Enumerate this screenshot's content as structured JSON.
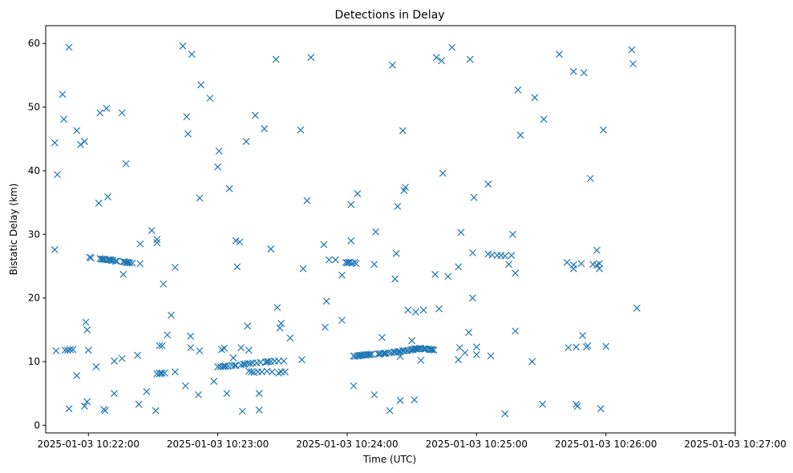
{
  "chart_data": {
    "type": "scatter",
    "title": "Detections in Delay",
    "xlabel": "Time (UTC)",
    "ylabel": "Bistatic Delay (km)",
    "marker": "x",
    "color": "#1f77b4",
    "x_unit": "minutes after 2025-01-03 10:22:00",
    "xlim": [
      -0.33,
      5.0
    ],
    "ylim": [
      -1.2,
      62.8
    ],
    "x_ticks": [
      {
        "value": 0,
        "label": "2025-01-03 10:22:00"
      },
      {
        "value": 1,
        "label": "2025-01-03 10:23:00"
      },
      {
        "value": 2,
        "label": "2025-01-03 10:24:00"
      },
      {
        "value": 3,
        "label": "2025-01-03 10:25:00"
      },
      {
        "value": 4,
        "label": "2025-01-03 10:26:00"
      },
      {
        "value": 5,
        "label": "2025-01-03 10:27:00"
      }
    ],
    "y_ticks": [
      {
        "value": 0,
        "label": "0"
      },
      {
        "value": 10,
        "label": "10"
      },
      {
        "value": 20,
        "label": "20"
      },
      {
        "value": 30,
        "label": "30"
      },
      {
        "value": 40,
        "label": "40"
      },
      {
        "value": 50,
        "label": "50"
      },
      {
        "value": 60,
        "label": "60"
      }
    ],
    "series": [
      {
        "name": "detections",
        "points": [
          [
            -0.26,
            44.4
          ],
          [
            -0.26,
            27.6
          ],
          [
            -0.25,
            11.7
          ],
          [
            -0.24,
            39.4
          ],
          [
            -0.2,
            52.0
          ],
          [
            -0.19,
            48.1
          ],
          [
            -0.18,
            11.8
          ],
          [
            -0.16,
            11.8
          ],
          [
            -0.15,
            2.6
          ],
          [
            -0.15,
            59.4
          ],
          [
            -0.14,
            11.9
          ],
          [
            -0.12,
            11.9
          ],
          [
            -0.09,
            46.3
          ],
          [
            -0.09,
            7.8
          ],
          [
            -0.06,
            44.1
          ],
          [
            -0.03,
            44.6
          ],
          [
            -0.03,
            3.0
          ],
          [
            -0.02,
            16.2
          ],
          [
            -0.01,
            15.0
          ],
          [
            -0.01,
            3.7
          ],
          [
            0.0,
            11.8
          ],
          [
            0.01,
            26.4
          ],
          [
            0.02,
            26.3
          ],
          [
            0.06,
            9.2
          ],
          [
            0.08,
            34.9
          ],
          [
            0.09,
            49.1
          ],
          [
            0.09,
            26.2
          ],
          [
            0.1,
            26.1
          ],
          [
            0.11,
            26.1
          ],
          [
            0.12,
            2.5
          ],
          [
            0.12,
            26.1
          ],
          [
            0.13,
            2.3
          ],
          [
            0.13,
            26.0
          ],
          [
            0.14,
            49.8
          ],
          [
            0.15,
            35.9
          ],
          [
            0.15,
            26.0
          ],
          [
            0.16,
            26.0
          ],
          [
            0.17,
            26.0
          ],
          [
            0.18,
            25.9
          ],
          [
            0.19,
            25.9
          ],
          [
            0.2,
            10.1
          ],
          [
            0.2,
            5.0
          ],
          [
            0.21,
            25.8
          ],
          [
            0.22,
            25.8
          ],
          [
            0.26,
            49.1
          ],
          [
            0.26,
            10.5
          ],
          [
            0.27,
            25.7
          ],
          [
            0.27,
            23.7
          ],
          [
            0.28,
            25.7
          ],
          [
            0.29,
            25.6
          ],
          [
            0.29,
            41.1
          ],
          [
            0.3,
            25.6
          ],
          [
            0.31,
            25.6
          ],
          [
            0.32,
            25.5
          ],
          [
            0.34,
            25.5
          ],
          [
            0.38,
            11.0
          ],
          [
            0.39,
            3.3
          ],
          [
            0.4,
            25.4
          ],
          [
            0.4,
            28.5
          ],
          [
            0.45,
            5.3
          ],
          [
            0.49,
            30.6
          ],
          [
            0.52,
            2.3
          ],
          [
            0.53,
            29.2
          ],
          [
            0.53,
            28.7
          ],
          [
            0.53,
            8.1
          ],
          [
            0.55,
            12.5
          ],
          [
            0.55,
            8.1
          ],
          [
            0.56,
            8.2
          ],
          [
            0.57,
            12.5
          ],
          [
            0.57,
            8.2
          ],
          [
            0.58,
            22.2
          ],
          [
            0.59,
            8.2
          ],
          [
            0.61,
            14.2
          ],
          [
            0.64,
            17.3
          ],
          [
            0.67,
            24.8
          ],
          [
            0.67,
            8.4
          ],
          [
            0.73,
            59.6
          ],
          [
            0.75,
            6.2
          ],
          [
            0.76,
            48.5
          ],
          [
            0.77,
            45.8
          ],
          [
            0.79,
            12.2
          ],
          [
            0.79,
            14.0
          ],
          [
            0.8,
            58.3
          ],
          [
            0.85,
            4.8
          ],
          [
            0.86,
            11.7
          ],
          [
            0.87,
            53.5
          ],
          [
            0.86,
            35.7
          ],
          [
            0.94,
            51.4
          ],
          [
            0.97,
            6.9
          ],
          [
            1.0,
            40.6
          ],
          [
            1.0,
            9.2
          ],
          [
            1.01,
            43.1
          ],
          [
            1.02,
            9.2
          ],
          [
            1.03,
            11.9
          ],
          [
            1.04,
            9.2
          ],
          [
            1.05,
            12.1
          ],
          [
            1.05,
            9.3
          ],
          [
            1.06,
            9.3
          ],
          [
            1.07,
            5.0
          ],
          [
            1.08,
            9.3
          ],
          [
            1.09,
            37.2
          ],
          [
            1.11,
            9.4
          ],
          [
            1.12,
            10.6
          ],
          [
            1.13,
            9.4
          ],
          [
            1.14,
            29.0
          ],
          [
            1.14,
            9.4
          ],
          [
            1.15,
            24.9
          ],
          [
            1.17,
            28.8
          ],
          [
            1.18,
            9.5
          ],
          [
            1.18,
            12.2
          ],
          [
            1.19,
            2.2
          ],
          [
            1.2,
            9.6
          ],
          [
            1.21,
            9.6
          ],
          [
            1.22,
            44.6
          ],
          [
            1.23,
            15.6
          ],
          [
            1.23,
            9.7
          ],
          [
            1.24,
            11.8
          ],
          [
            1.24,
            8.5
          ],
          [
            1.25,
            9.7
          ],
          [
            1.26,
            8.4
          ],
          [
            1.27,
            9.8
          ],
          [
            1.28,
            8.3
          ],
          [
            1.29,
            48.7
          ],
          [
            1.3,
            9.8
          ],
          [
            1.31,
            8.4
          ],
          [
            1.32,
            5.0
          ],
          [
            1.32,
            2.4
          ],
          [
            1.33,
            9.9
          ],
          [
            1.34,
            8.4
          ],
          [
            1.36,
            46.6
          ],
          [
            1.37,
            9.9
          ],
          [
            1.38,
            10.0
          ],
          [
            1.38,
            8.5
          ],
          [
            1.39,
            10.0
          ],
          [
            1.41,
            27.7
          ],
          [
            1.41,
            10.0
          ],
          [
            1.42,
            8.4
          ],
          [
            1.44,
            10.1
          ],
          [
            1.45,
            57.5
          ],
          [
            1.46,
            18.5
          ],
          [
            1.47,
            10.1
          ],
          [
            1.47,
            8.2
          ],
          [
            1.48,
            15.3
          ],
          [
            1.49,
            8.4
          ],
          [
            1.49,
            16.0
          ],
          [
            1.51,
            10.1
          ],
          [
            1.52,
            8.4
          ],
          [
            1.56,
            13.7
          ],
          [
            1.64,
            46.4
          ],
          [
            1.65,
            10.3
          ],
          [
            1.66,
            24.6
          ],
          [
            1.69,
            35.3
          ],
          [
            1.72,
            57.8
          ],
          [
            1.82,
            28.4
          ],
          [
            1.83,
            15.4
          ],
          [
            1.84,
            19.5
          ],
          [
            1.86,
            26.0
          ],
          [
            1.91,
            26.0
          ],
          [
            1.96,
            23.6
          ],
          [
            1.96,
            16.5
          ],
          [
            1.99,
            25.6
          ],
          [
            2.0,
            25.5
          ],
          [
            2.01,
            25.6
          ],
          [
            2.02,
            25.6
          ],
          [
            2.03,
            29.0
          ],
          [
            2.03,
            34.7
          ],
          [
            2.04,
            25.5
          ],
          [
            2.05,
            10.9
          ],
          [
            2.05,
            6.2
          ],
          [
            2.06,
            25.6
          ],
          [
            2.06,
            10.8
          ],
          [
            2.07,
            25.4
          ],
          [
            2.08,
            10.9
          ],
          [
            2.08,
            36.4
          ],
          [
            2.09,
            10.9
          ],
          [
            2.1,
            11.0
          ],
          [
            2.11,
            11.0
          ],
          [
            2.12,
            11.0
          ],
          [
            2.13,
            11.1
          ],
          [
            2.14,
            11.0
          ],
          [
            2.15,
            11.1
          ],
          [
            2.16,
            11.1
          ],
          [
            2.17,
            11.1
          ],
          [
            2.18,
            11.1
          ],
          [
            2.19,
            11.2
          ],
          [
            2.22,
            30.4
          ],
          [
            2.21,
            25.3
          ],
          [
            2.21,
            4.8
          ],
          [
            2.24,
            11.2
          ],
          [
            2.25,
            11.2
          ],
          [
            2.26,
            11.3
          ],
          [
            2.27,
            13.8
          ],
          [
            2.28,
            11.3
          ],
          [
            2.29,
            11.3
          ],
          [
            2.3,
            11.3
          ],
          [
            2.32,
            11.4
          ],
          [
            2.33,
            2.3
          ],
          [
            2.34,
            11.4
          ],
          [
            2.35,
            56.6
          ],
          [
            2.36,
            11.5
          ],
          [
            2.37,
            11.5
          ],
          [
            2.37,
            23.0
          ],
          [
            2.38,
            27.0
          ],
          [
            2.39,
            34.4
          ],
          [
            2.39,
            11.5
          ],
          [
            2.4,
            11.6
          ],
          [
            2.41,
            10.8
          ],
          [
            2.41,
            11.6
          ],
          [
            2.41,
            3.9
          ],
          [
            2.43,
            46.3
          ],
          [
            2.43,
            11.7
          ],
          [
            2.44,
            36.9
          ],
          [
            2.44,
            11.7
          ],
          [
            2.45,
            37.4
          ],
          [
            2.46,
            11.7
          ],
          [
            2.47,
            11.8
          ],
          [
            2.47,
            18.1
          ],
          [
            2.49,
            11.8
          ],
          [
            2.5,
            11.9
          ],
          [
            2.5,
            13.3
          ],
          [
            2.51,
            11.9
          ],
          [
            2.52,
            12.0
          ],
          [
            2.52,
            4.0
          ],
          [
            2.53,
            17.8
          ],
          [
            2.53,
            12.0
          ],
          [
            2.54,
            12.0
          ],
          [
            2.55,
            12.0
          ],
          [
            2.56,
            12.1
          ],
          [
            2.57,
            10.2
          ],
          [
            2.57,
            12.1
          ],
          [
            2.59,
            18.1
          ],
          [
            2.59,
            12.0
          ],
          [
            2.6,
            12.0
          ],
          [
            2.61,
            12.0
          ],
          [
            2.63,
            12.0
          ],
          [
            2.64,
            11.9
          ],
          [
            2.65,
            11.9
          ],
          [
            2.66,
            11.9
          ],
          [
            2.67,
            11.8
          ],
          [
            2.68,
            23.7
          ],
          [
            2.69,
            57.8
          ],
          [
            2.71,
            18.3
          ],
          [
            2.73,
            57.3
          ],
          [
            2.74,
            39.6
          ],
          [
            2.78,
            23.4
          ],
          [
            2.81,
            59.4
          ],
          [
            2.86,
            10.3
          ],
          [
            2.86,
            24.9
          ],
          [
            2.87,
            12.2
          ],
          [
            2.88,
            30.3
          ],
          [
            2.91,
            11.4
          ],
          [
            2.94,
            14.6
          ],
          [
            2.95,
            57.5
          ],
          [
            2.97,
            20.0
          ],
          [
            2.97,
            27.1
          ],
          [
            2.98,
            35.8
          ],
          [
            3.0,
            11.1
          ],
          [
            3.0,
            12.3
          ],
          [
            3.09,
            26.9
          ],
          [
            3.09,
            37.9
          ],
          [
            3.11,
            10.9
          ],
          [
            3.12,
            26.8
          ],
          [
            3.16,
            26.7
          ],
          [
            3.19,
            26.7
          ],
          [
            3.22,
            26.6
          ],
          [
            3.22,
            1.8
          ],
          [
            3.25,
            25.3
          ],
          [
            3.27,
            26.7
          ],
          [
            3.28,
            30.0
          ],
          [
            3.3,
            14.8
          ],
          [
            3.3,
            23.9
          ],
          [
            3.32,
            52.7
          ],
          [
            3.34,
            45.6
          ],
          [
            3.43,
            10.0
          ],
          [
            3.45,
            51.5
          ],
          [
            3.51,
            3.3
          ],
          [
            3.52,
            48.1
          ],
          [
            3.64,
            58.3
          ],
          [
            3.7,
            25.6
          ],
          [
            3.71,
            12.2
          ],
          [
            3.75,
            25.2
          ],
          [
            3.75,
            24.6
          ],
          [
            3.75,
            55.6
          ],
          [
            3.77,
            3.3
          ],
          [
            3.77,
            12.3
          ],
          [
            3.78,
            3.0
          ],
          [
            3.81,
            25.4
          ],
          [
            3.82,
            14.1
          ],
          [
            3.83,
            55.4
          ],
          [
            3.85,
            12.3
          ],
          [
            3.86,
            12.5
          ],
          [
            3.88,
            38.8
          ],
          [
            3.9,
            25.3
          ],
          [
            3.93,
            27.5
          ],
          [
            3.93,
            25.2
          ],
          [
            3.95,
            25.4
          ],
          [
            3.95,
            24.6
          ],
          [
            3.96,
            2.6
          ],
          [
            3.98,
            46.4
          ],
          [
            4.0,
            12.4
          ],
          [
            4.2,
            59.0
          ],
          [
            4.21,
            56.8
          ],
          [
            4.24,
            18.4
          ]
        ]
      }
    ]
  }
}
